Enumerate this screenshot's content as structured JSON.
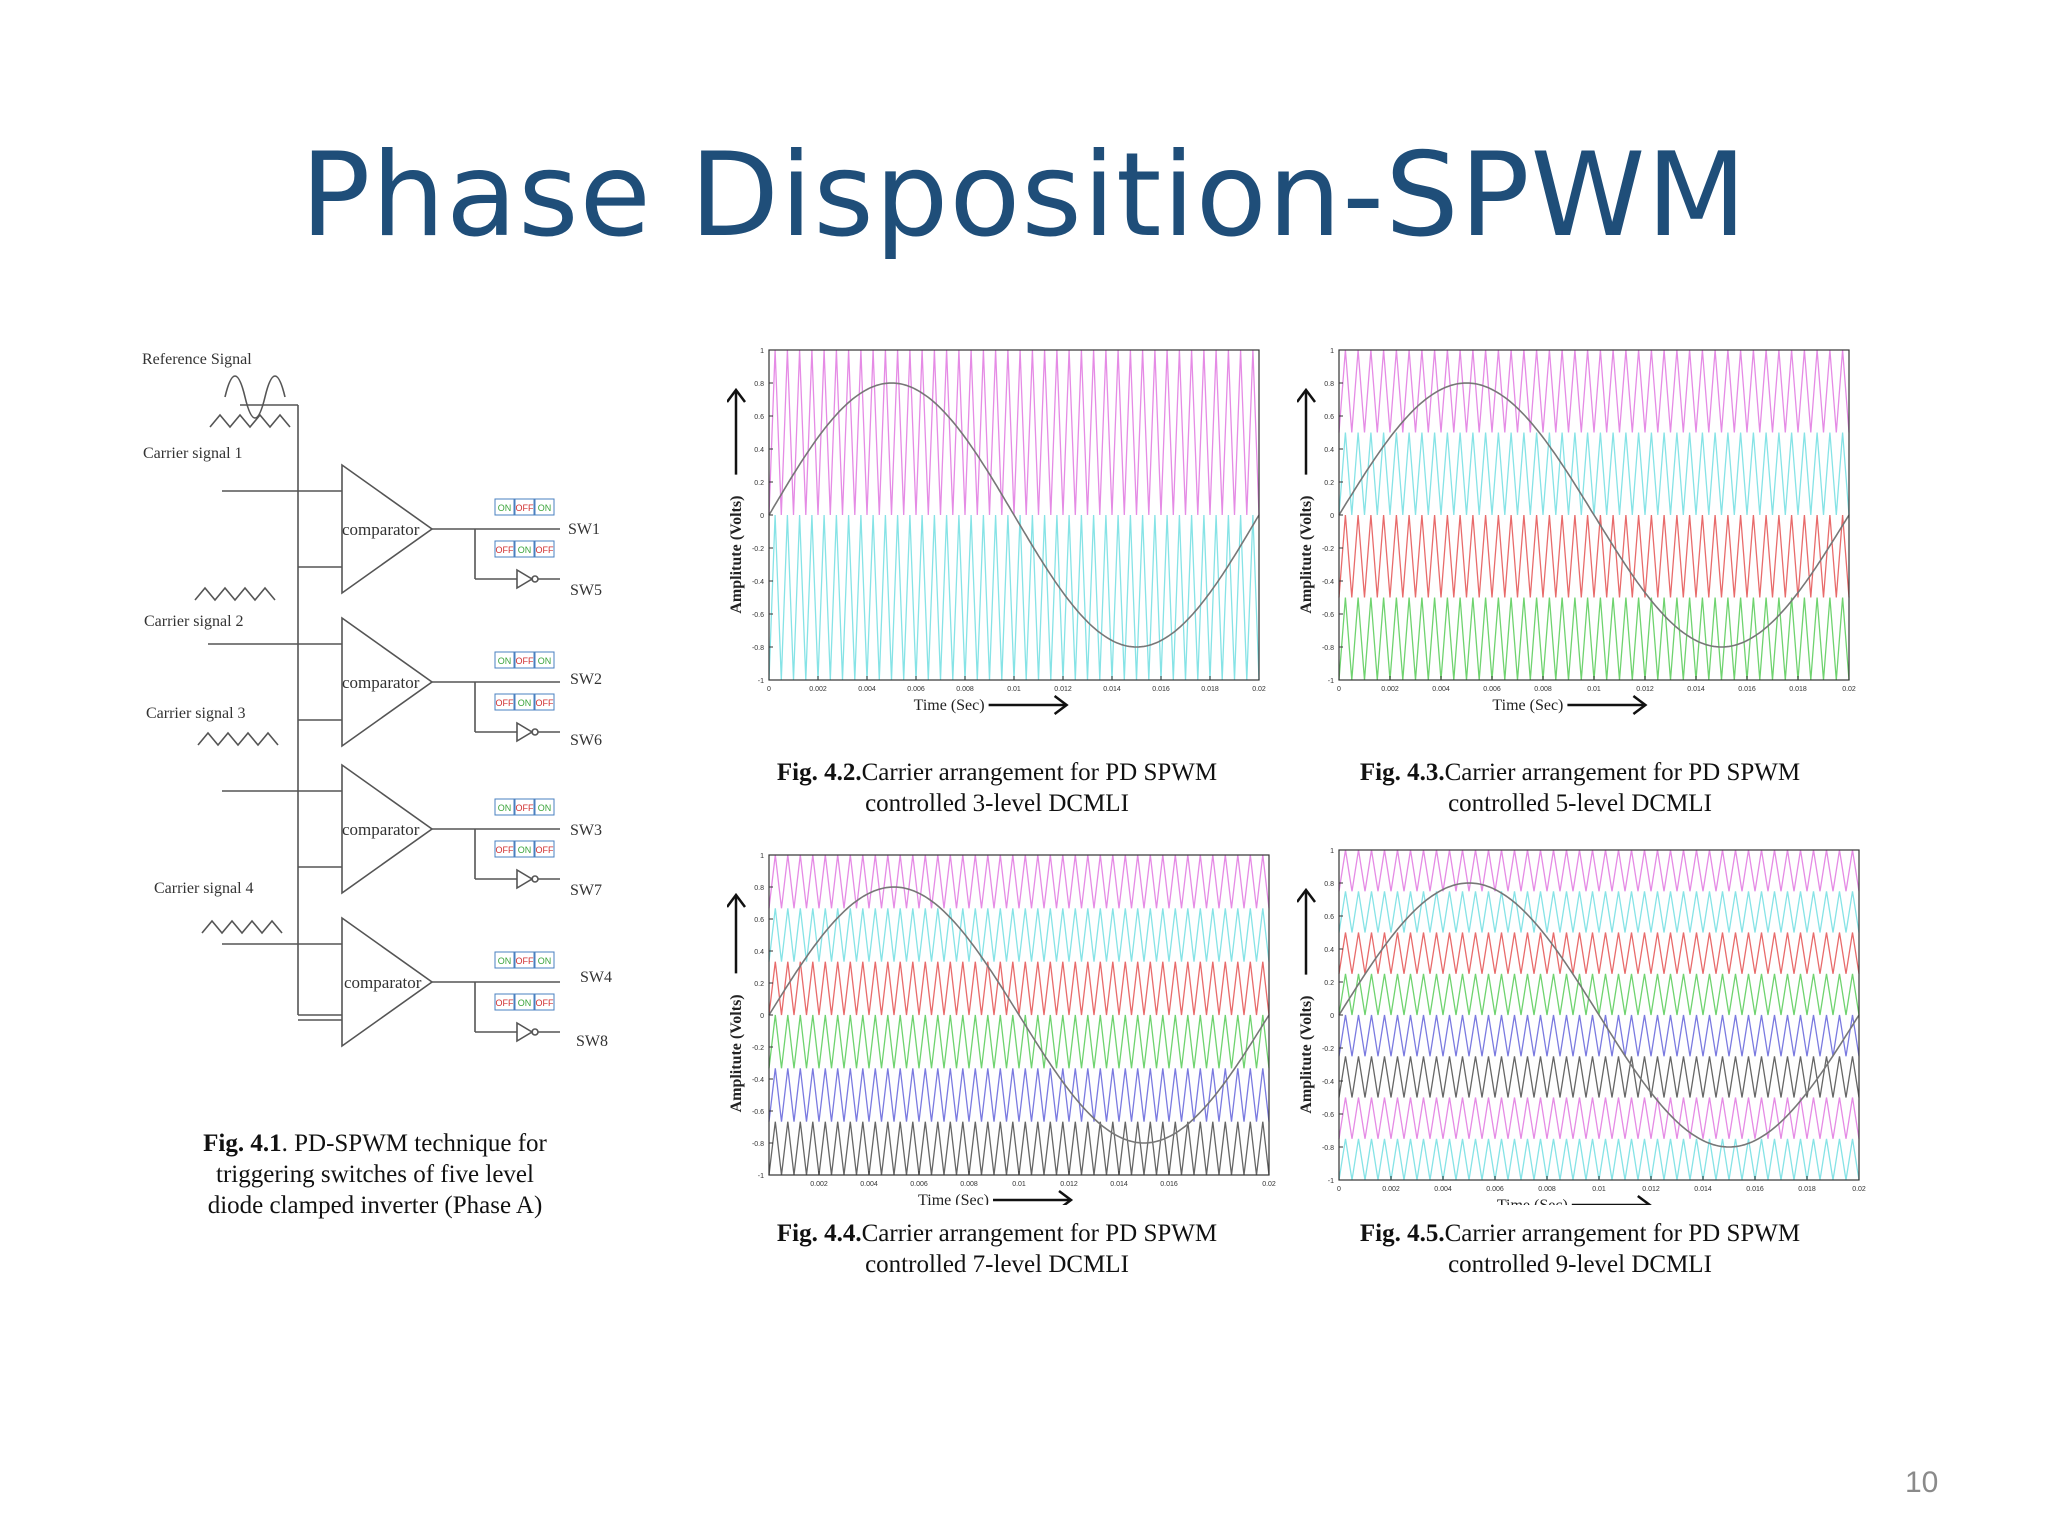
{
  "title": "Phase Disposition-SPWM",
  "page_number": "10",
  "diagram": {
    "reference_label": "Reference  Signal",
    "carrier_labels": [
      "Carrier signal 1",
      "Carrier signal 2",
      "Carrier signal 3",
      "Carrier signal 4"
    ],
    "comparator_label": "comparator",
    "switch_labels_top": [
      "SW1",
      "SW2",
      "SW3",
      "SW4"
    ],
    "switch_labels_bottom": [
      "SW5",
      "SW6",
      "SW7",
      "SW8"
    ],
    "pulse_labels": [
      [
        "ON",
        "OFF",
        "ON"
      ],
      [
        "OFF",
        "ON",
        "OFF"
      ],
      [
        "ON",
        "OFF",
        "ON"
      ],
      [
        "OFF",
        "ON",
        "OFF"
      ],
      [
        "ON",
        "OFF",
        "ON"
      ],
      [
        "OFF",
        "ON",
        "OFF"
      ],
      [
        "ON",
        "OFF",
        "ON"
      ],
      [
        "OFF",
        "ON",
        "OFF"
      ]
    ],
    "caption_bold": "Fig. 4.1",
    "caption_lines": [
      ". PD-SPWM technique for",
      "triggering switches of five level",
      "diode clamped inverter (Phase A)"
    ]
  },
  "chart_data": [
    {
      "type": "line",
      "levels": 3,
      "ylabel": "Amplitute (Volts)",
      "xlabel": "Time (Sec)",
      "xlim": [
        0,
        0.02
      ],
      "ylim": [
        -1,
        1
      ],
      "xticks": [
        "0",
        "0.002",
        "0.004",
        "0.006",
        "0.008",
        "0.01",
        "0.012",
        "0.014",
        "0.016",
        "0.018",
        "0.02"
      ],
      "yticks": [
        "-1",
        "-0.8",
        "-0.6",
        "-0.4",
        "-0.2",
        "0",
        "0.2",
        "0.4",
        "0.6",
        "0.8",
        "1"
      ],
      "reference": {
        "amplitude": 0.8,
        "frequency": 50
      },
      "carrier_cycles": 40,
      "carrier_bands": [
        [
          0,
          1
        ],
        [
          -1,
          0
        ]
      ],
      "carrier_colors": [
        "#e58be5",
        "#86e3e6"
      ],
      "caption_bold": "Fig. 4.2.",
      "caption_lines": [
        "Carrier arrangement for PD SPWM",
        "controlled 3-level DCMLI"
      ]
    },
    {
      "type": "line",
      "levels": 5,
      "ylabel": "Amplitute (Volts)",
      "xlabel": "Time (Sec)",
      "xlim": [
        0,
        0.02
      ],
      "ylim": [
        -1,
        1
      ],
      "xticks": [
        "0",
        "0.002",
        "0.004",
        "0.006",
        "0.008",
        "0.01",
        "0.012",
        "0.014",
        "0.016",
        "0.018",
        "0.02"
      ],
      "yticks": [
        "-1",
        "-0.8",
        "-0.6",
        "-0.4",
        "-0.2",
        "0",
        "0.2",
        "0.4",
        "0.6",
        "0.8",
        "1"
      ],
      "reference": {
        "amplitude": 0.8,
        "frequency": 50
      },
      "carrier_cycles": 40,
      "carrier_bands": [
        [
          0.5,
          1
        ],
        [
          0,
          0.5
        ],
        [
          -0.5,
          0
        ],
        [
          -1,
          -0.5
        ]
      ],
      "carrier_colors": [
        "#e58be5",
        "#86e3e6",
        "#e86b6b",
        "#6fd36f"
      ],
      "caption_bold": "Fig. 4.3.",
      "caption_lines": [
        "Carrier arrangement for PD SPWM",
        "controlled 5-level DCMLI"
      ]
    },
    {
      "type": "line",
      "levels": 7,
      "ylabel": "Amplitute (Volts)",
      "xlabel": "Time (Sec)",
      "xlim": [
        0,
        0.02
      ],
      "ylim": [
        -1,
        1
      ],
      "xticks": [
        "0.002",
        "0.004",
        "0.006",
        "0.008",
        "0.01",
        "0.012",
        "0.014",
        "0.016",
        "0.02"
      ],
      "yticks": [
        "-1",
        "-0.8",
        "-0.6",
        "-0.4",
        "-0.2",
        "0",
        "0.2",
        "0.4",
        "0.6",
        "0.8",
        "1"
      ],
      "reference": {
        "amplitude": 0.8,
        "frequency": 50
      },
      "carrier_cycles": 40,
      "carrier_bands": [
        [
          0.667,
          1
        ],
        [
          0.333,
          0.667
        ],
        [
          0,
          0.333
        ],
        [
          -0.333,
          0
        ],
        [
          -0.667,
          -0.333
        ],
        [
          -1,
          -0.667
        ]
      ],
      "carrier_colors": [
        "#e58be5",
        "#86e3e6",
        "#e86b6b",
        "#6fd36f",
        "#7a7ae0",
        "#666666"
      ],
      "caption_bold": "Fig. 4.4.",
      "caption_lines": [
        "Carrier arrangement for PD SPWM",
        "controlled 7-level DCMLI"
      ]
    },
    {
      "type": "line",
      "levels": 9,
      "ylabel": "Amplitute (Volts)",
      "xlabel": "Time (Sec)",
      "xlim": [
        0,
        0.02
      ],
      "ylim": [
        -1,
        1
      ],
      "xticks": [
        "0",
        "0.002",
        "0.004",
        "0.006",
        "0.008",
        "0.01",
        "0.012",
        "0.014",
        "0.016",
        "0.018",
        "0.02"
      ],
      "yticks": [
        "-1",
        "-0.8",
        "-0.6",
        "-0.4",
        "-0.2",
        "0",
        "0.2",
        "0.4",
        "0.6",
        "0.8",
        "1"
      ],
      "reference": {
        "amplitude": 0.8,
        "frequency": 50
      },
      "carrier_cycles": 40,
      "carrier_bands": [
        [
          0.75,
          1
        ],
        [
          0.5,
          0.75
        ],
        [
          0.25,
          0.5
        ],
        [
          0,
          0.25
        ],
        [
          -0.25,
          0
        ],
        [
          -0.5,
          -0.25
        ],
        [
          -0.75,
          -0.5
        ],
        [
          -1,
          -0.75
        ]
      ],
      "carrier_colors": [
        "#e58be5",
        "#86e3e6",
        "#e86b6b",
        "#6fd36f",
        "#7a7ae0",
        "#666666",
        "#e58be5",
        "#86e3e6"
      ],
      "caption_bold": "Fig. 4.5.",
      "caption_lines": [
        "Carrier arrangement for PD SPWM",
        "controlled 9-level DCMLI"
      ]
    }
  ]
}
